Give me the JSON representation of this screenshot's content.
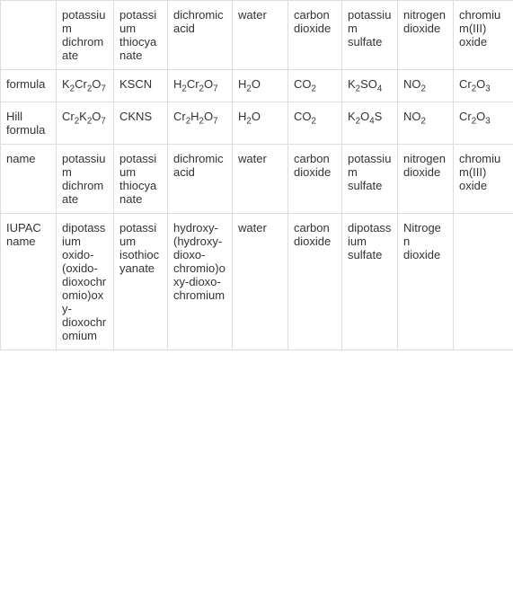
{
  "columns": [
    "",
    "potassium dichromate",
    "potassium thiocyanate",
    "dichromic acid",
    "water",
    "carbon dioxide",
    "potassium sulfate",
    "nitrogen dioxide",
    "chromium(III) oxide"
  ],
  "rows": [
    {
      "label": "formula",
      "cells": [
        {
          "html": "K<sub>2</sub>Cr<sub>2</sub>O<sub>7</sub>"
        },
        {
          "html": "KSCN"
        },
        {
          "html": "H<sub>2</sub>Cr<sub>2</sub>O<sub>7</sub>"
        },
        {
          "html": "H<sub>2</sub>O"
        },
        {
          "html": "CO<sub>2</sub>"
        },
        {
          "html": "K<sub>2</sub>SO<sub>4</sub>"
        },
        {
          "html": "NO<sub>2</sub>"
        },
        {
          "html": "Cr<sub>2</sub>O<sub>3</sub>"
        }
      ]
    },
    {
      "label": "Hill formula",
      "cells": [
        {
          "html": "Cr<sub>2</sub>K<sub>2</sub>O<sub>7</sub>"
        },
        {
          "html": "CKNS"
        },
        {
          "html": "Cr<sub>2</sub>H<sub>2</sub>O<sub>7</sub>"
        },
        {
          "html": "H<sub>2</sub>O"
        },
        {
          "html": "CO<sub>2</sub>"
        },
        {
          "html": "K<sub>2</sub>O<sub>4</sub>S"
        },
        {
          "html": "NO<sub>2</sub>"
        },
        {
          "html": "Cr<sub>2</sub>O<sub>3</sub>"
        }
      ]
    },
    {
      "label": "name",
      "cells": [
        {
          "text": "potassium dichromate"
        },
        {
          "text": "potassium thiocyanate"
        },
        {
          "text": "dichromic acid"
        },
        {
          "text": "water"
        },
        {
          "text": "carbon dioxide"
        },
        {
          "text": "potassium sulfate"
        },
        {
          "text": "nitrogen dioxide"
        },
        {
          "text": "chromium(III) oxide"
        }
      ]
    },
    {
      "label": "IUPAC name",
      "cells": [
        {
          "text": "dipotassium oxido-(oxido-dioxochromio)oxy-dioxochromium"
        },
        {
          "text": "potassium isothiocyanate"
        },
        {
          "text": "hydroxy-(hydroxy-dioxo-chromio)oxy-dioxo-chromium"
        },
        {
          "text": "water"
        },
        {
          "text": "carbon dioxide"
        },
        {
          "text": "dipotassium sulfate"
        },
        {
          "text": "Nitrogen dioxide"
        },
        {
          "text": ""
        }
      ]
    }
  ],
  "style": {
    "border_color": "#dddddd",
    "text_color": "#333333",
    "background_color": "#ffffff",
    "font_size": 13,
    "cell_padding": "8px 6px"
  }
}
